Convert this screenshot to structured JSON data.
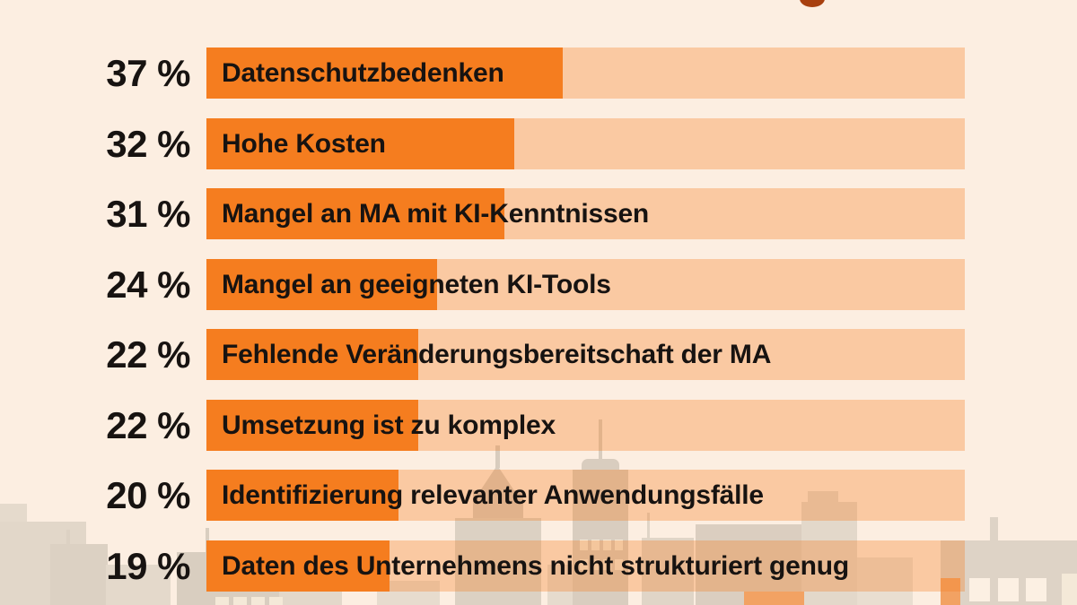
{
  "colors": {
    "background": "#fceee1",
    "bar_fill": "#f57d1f",
    "bar_track_rgba": "rgba(246,125,30,0.32)",
    "text": "#171311",
    "title_accent": "#a8400f",
    "skyline_silhouette": "#dcd1c3",
    "window_light": "#f4e9d8",
    "window_orange": "#f2a263"
  },
  "chart_data": {
    "type": "bar",
    "orientation": "horizontal",
    "unit": "%",
    "grid": false,
    "legend": false,
    "axis_ticks_visible": false,
    "categories": [
      "Datenschutzbedenken",
      "Hohe Kosten",
      "Mangel an MA mit KI-Kenntnissen",
      "Mangel an geeigneten KI-Tools",
      "Fehlende Veränderungsbereitschaft der MA",
      "Umsetzung ist zu komplex",
      "Identifizierung relevanter Anwendungsfälle",
      "Daten des Unternehmens nicht strukturiert genug"
    ],
    "values": [
      37,
      32,
      31,
      24,
      22,
      22,
      20,
      19
    ],
    "value_labels": [
      "37 %",
      "32 %",
      "31 %",
      "24 %",
      "22 %",
      "22 %",
      "20 %",
      "19 %"
    ],
    "xlim": [
      0,
      78.8
    ]
  }
}
